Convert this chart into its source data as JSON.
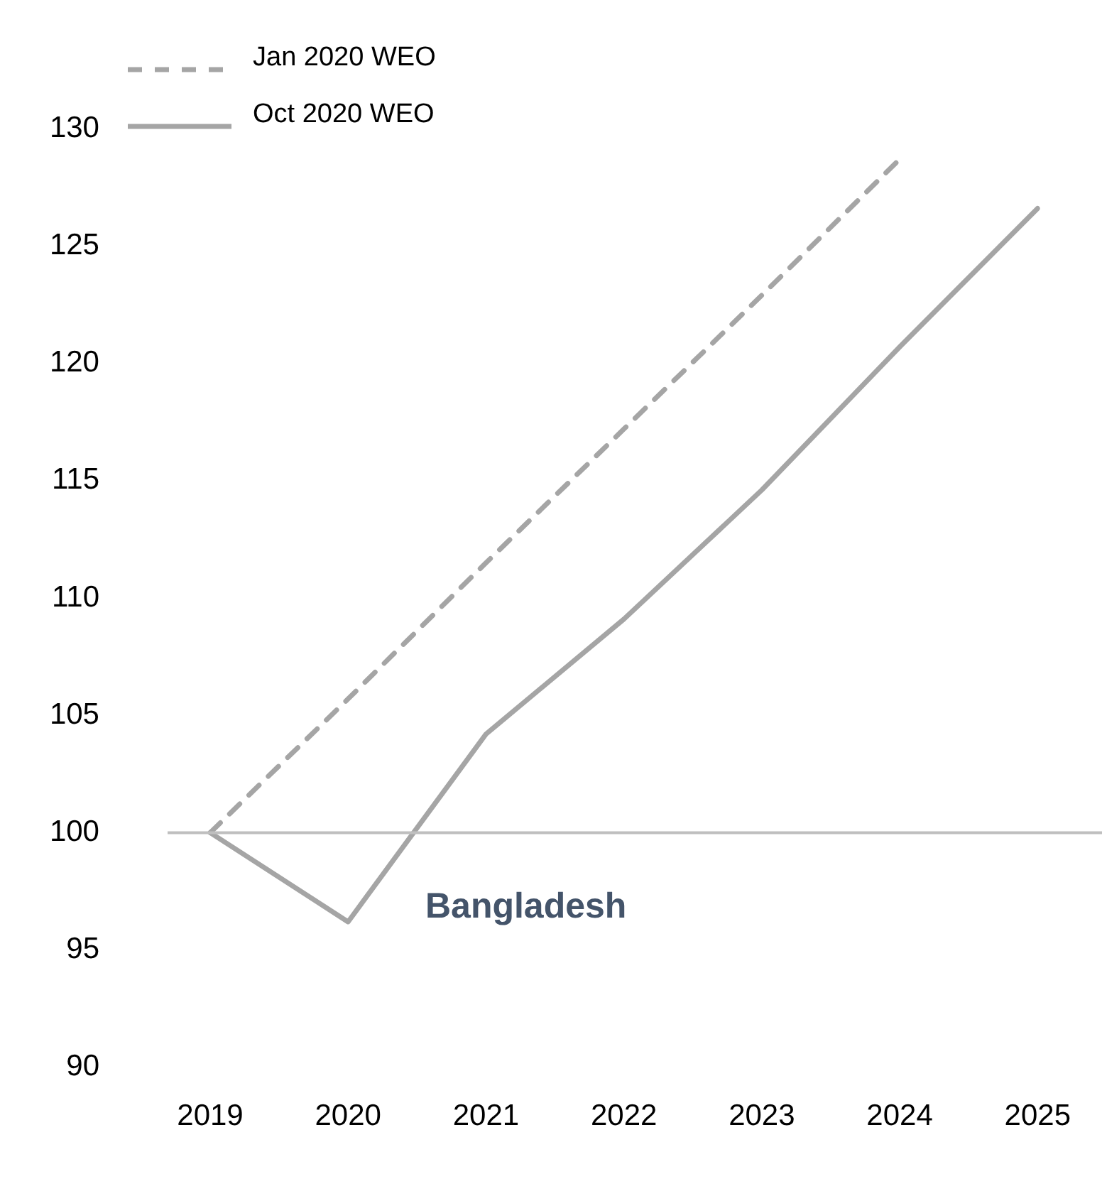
{
  "chart_data": {
    "type": "line",
    "categories": [
      "2019",
      "2020",
      "2021",
      "2022",
      "2023",
      "2024",
      "2025"
    ],
    "series": [
      {
        "name": "Jan 2020 WEO",
        "color": "#a5a5a5",
        "line_style": "dashed",
        "values": [
          100,
          105.7,
          111.5,
          117.2,
          122.9,
          128.7,
          null
        ]
      },
      {
        "name": "Oct 2020 WEO",
        "color": "#a5a5a5",
        "line_style": "solid",
        "values": [
          100,
          96.2,
          104.2,
          109.1,
          114.6,
          120.7,
          126.6
        ]
      }
    ],
    "ylim": [
      90,
      130
    ],
    "yticks": [
      90,
      95,
      100,
      105,
      110,
      115,
      120,
      125,
      130
    ],
    "ref_lines": [
      {
        "axis": "y",
        "value": 100,
        "color": "#bfbfbf"
      }
    ],
    "annotations": [
      "Bangladesh"
    ],
    "grid": false,
    "legend": "top left",
    "marker": "none"
  }
}
